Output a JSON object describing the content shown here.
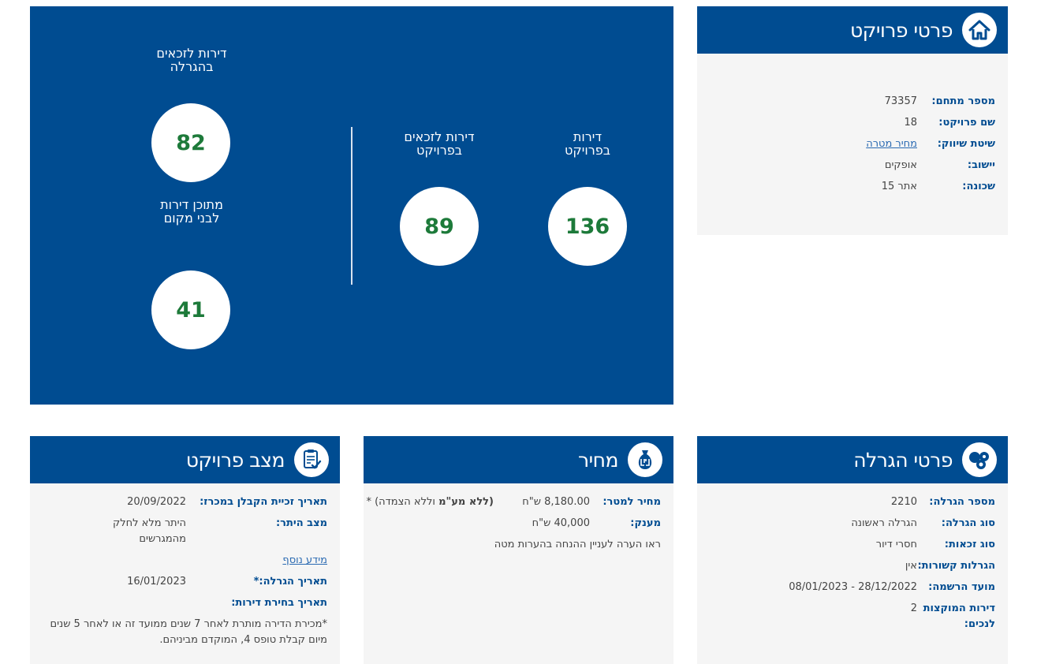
{
  "stats": {
    "winners_lottery_label_1": "דירות לזכאים",
    "winners_lottery_label_2": "בהגרלה",
    "winners_lottery_value": "82",
    "locals_label_1": "מתוכן דירות",
    "locals_label_2": "לבני מקום",
    "locals_value": "41",
    "winners_project_label_1": "דירות לזכאים",
    "winners_project_label_2": "בפרויקט",
    "winners_project_value": "89",
    "total_label_1": "דירות",
    "total_label_2": "בפרויקט",
    "total_value": "136"
  },
  "project": {
    "title": "פרטי פרויקט",
    "icon": "house-icon",
    "rows": [
      {
        "label": "מספר מתחם:",
        "value": "73357"
      },
      {
        "label": "שם פרויקט:",
        "value": "18"
      },
      {
        "label": "שיטת שיווק:",
        "value": "מחיר מטרה"
      },
      {
        "label": "יישוב:",
        "value": "אופקים"
      },
      {
        "label": "שכונה:",
        "value": "אתר 15"
      }
    ]
  },
  "lottery": {
    "title": "פרטי הגרלה",
    "icon": "lottery-balls-icon",
    "rows": [
      {
        "label": "מספר הגרלה:",
        "value": "2210"
      },
      {
        "label": "סוג הגרלה:",
        "value": "הגרלה ראשונה"
      },
      {
        "label": "סוג זכאות:",
        "value": "חסרי דיור"
      },
      {
        "label": "הגרלות קשורות:",
        "value": "אין"
      },
      {
        "label": "מועד הרשמה:",
        "value": "08/01/2023 - 28/12/2022"
      },
      {
        "label_1": "דירות המוקצות",
        "label_2": "לנכים:",
        "value": "2"
      }
    ]
  },
  "price": {
    "title": "מחיר",
    "icon": "money-bag-icon",
    "price_label": "מחיר למטר:",
    "price_value": "8,180.00 ש\"ח",
    "price_note_bold": "(ללא מע\"מ",
    "price_note_rest": " וללא הצמדה) *",
    "grant_label": "מענק:",
    "grant_value": "40,000 ש\"ח",
    "note": "ראו הערה לעניין ההנחה בהערות מטה"
  },
  "status": {
    "title": "מצב פרויקט",
    "icon": "clipboard-check-icon",
    "winning_date_label": "תאריך זכיית הקבלן במכרז:",
    "winning_date_value": "20/09/2022",
    "land_status_label": "מצב היתר:",
    "land_status_value_1": "היתר מלא לחלק",
    "land_status_value_2": "מהמגרשים",
    "more_info": "מידע נוסף",
    "lottery_date_label": "תאריך הגרלה:*",
    "lottery_date_value": "16/01/2023",
    "choice_date_label": "תאריך בחירת דירות:",
    "footnote_1": "*מכירת הדירה מותרת לאחר 7 שנים ממועד זה או לאחר 5 שנים",
    "footnote_2": "מיום קבלת טופס 4, המוקדם מביניהם."
  }
}
